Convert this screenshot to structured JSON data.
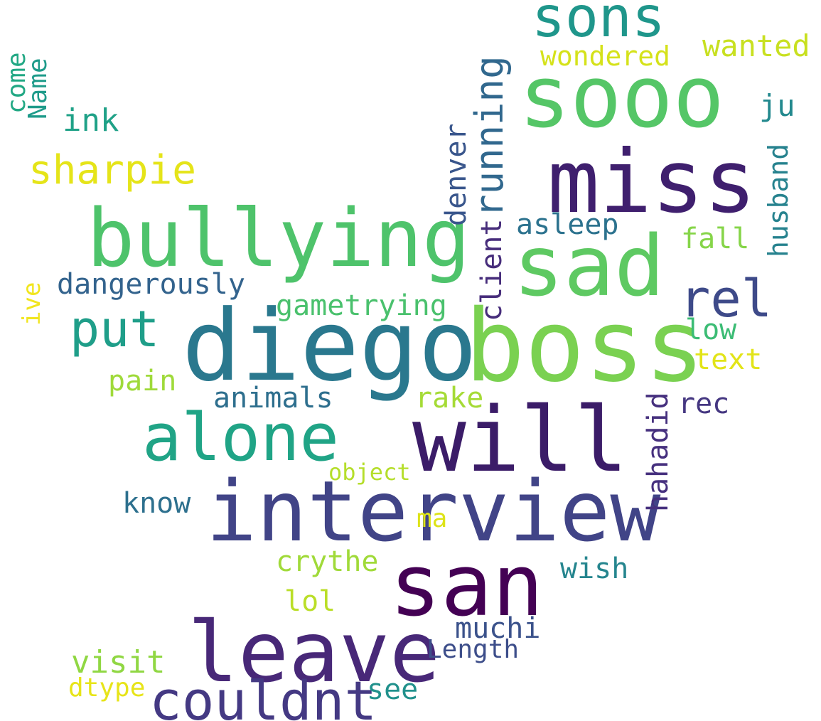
{
  "words": [
    {
      "id": "sons",
      "text": "sons",
      "color": "#1f968b"
    },
    {
      "id": "sooo",
      "text": "sooo",
      "color": "#55c667"
    },
    {
      "id": "miss",
      "text": "miss",
      "color": "#3f1f6e"
    },
    {
      "id": "sad",
      "text": "sad",
      "color": "#5ec962"
    },
    {
      "id": "bullying",
      "text": "bullying",
      "color": "#4ec36b"
    },
    {
      "id": "diego",
      "text": "diego",
      "color": "#2a788e"
    },
    {
      "id": "boss",
      "text": "boss",
      "color": "#7ad151"
    },
    {
      "id": "will",
      "text": "will",
      "color": "#3b1c68"
    },
    {
      "id": "alone",
      "text": "alone",
      "color": "#20a486"
    },
    {
      "id": "interview",
      "text": "interview",
      "color": "#414487"
    },
    {
      "id": "san",
      "text": "san",
      "color": "#440154"
    },
    {
      "id": "leave",
      "text": "leave",
      "color": "#482878"
    },
    {
      "id": "couldnt",
      "text": "couldnt",
      "color": "#443983"
    },
    {
      "id": "put",
      "text": "put",
      "color": "#1f9e89"
    },
    {
      "id": "sharpie",
      "text": "sharpie",
      "color": "#e5e419"
    },
    {
      "id": "rel",
      "text": "rel",
      "color": "#3e4a89"
    },
    {
      "id": "running",
      "text": "running",
      "color": "#31688e"
    },
    {
      "id": "wanted",
      "text": "wanted",
      "color": "#c8e020"
    },
    {
      "id": "wondered",
      "text": "wondered",
      "color": "#d5e21a"
    },
    {
      "id": "ink",
      "text": "ink",
      "color": "#1fa187"
    },
    {
      "id": "ju",
      "text": "ju",
      "color": "#23898e"
    },
    {
      "id": "husband",
      "text": "husband",
      "color": "#26828e"
    },
    {
      "id": "denver",
      "text": "denver",
      "color": "#39568c"
    },
    {
      "id": "asleep",
      "text": "asleep",
      "color": "#2c728e"
    },
    {
      "id": "fall",
      "text": "fall",
      "color": "#86d549"
    },
    {
      "id": "dangerously",
      "text": "dangerously",
      "color": "#33638d"
    },
    {
      "id": "gametrying",
      "text": "gametrying",
      "color": "#4ac16d"
    },
    {
      "id": "client",
      "text": "client",
      "color": "#472d7b"
    },
    {
      "id": "low",
      "text": "low",
      "color": "#3cbc75"
    },
    {
      "id": "text",
      "text": "text",
      "color": "#e2e418"
    },
    {
      "id": "pain",
      "text": "pain",
      "color": "#9fda3a"
    },
    {
      "id": "animals",
      "text": "animals",
      "color": "#2e6f8e"
    },
    {
      "id": "rake",
      "text": "rake",
      "color": "#a5db36"
    },
    {
      "id": "rec",
      "text": "rec",
      "color": "#453781"
    },
    {
      "id": "hahadid",
      "text": "hahadid",
      "color": "#46307e"
    },
    {
      "id": "object",
      "text": "object",
      "color": "#b5de2b"
    },
    {
      "id": "know",
      "text": "know",
      "color": "#2d708e"
    },
    {
      "id": "ma",
      "text": "ma",
      "color": "#dde318"
    },
    {
      "id": "crythe",
      "text": "crythe",
      "color": "#a0da39"
    },
    {
      "id": "wish",
      "text": "wish",
      "color": "#25858e"
    },
    {
      "id": "lol",
      "text": "lol",
      "color": "#bade28"
    },
    {
      "id": "muchi",
      "text": "muchi",
      "color": "#3b528b"
    },
    {
      "id": "length",
      "text": "Length",
      "color": "#3d4e8a"
    },
    {
      "id": "visit",
      "text": "visit",
      "color": "#90d743"
    },
    {
      "id": "dtype",
      "text": "dtype",
      "color": "#e7e419"
    },
    {
      "id": "see",
      "text": "see",
      "color": "#21918c"
    },
    {
      "id": "come",
      "text": "come",
      "color": "#22a884"
    },
    {
      "id": "name",
      "text": "Name",
      "color": "#1e9b8a"
    },
    {
      "id": "ive",
      "text": "ive",
      "color": "#f1e51d"
    }
  ]
}
